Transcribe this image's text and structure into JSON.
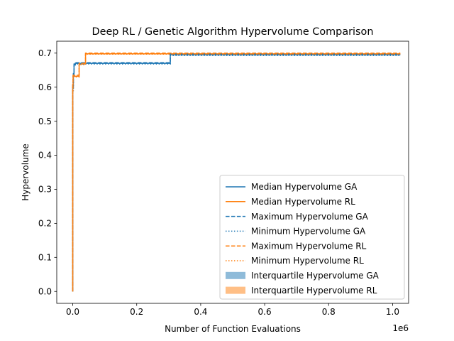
{
  "chart_data": {
    "type": "line",
    "title": "Deep RL / Genetic Algorithm Hypervolume Comparison",
    "xlabel": "Number of Function Evaluations",
    "ylabel": "Hypervolume",
    "x_offset_label": "1e6",
    "xlim": [
      -0.05,
      1.05
    ],
    "ylim": [
      -0.035,
      0.735
    ],
    "x_ticks": [
      0.0,
      0.2,
      0.4,
      0.6,
      0.8,
      1.0
    ],
    "x_tick_labels": [
      "0.0",
      "0.2",
      "0.4",
      "0.6",
      "0.8",
      "1.0"
    ],
    "y_ticks": [
      0.0,
      0.1,
      0.2,
      0.3,
      0.4,
      0.5,
      0.6,
      0.7
    ],
    "y_tick_labels": [
      "0.0",
      "0.1",
      "0.2",
      "0.3",
      "0.4",
      "0.5",
      "0.6",
      "0.7"
    ],
    "legend_position": "lower-right",
    "grid": false,
    "series": [
      {
        "name": "Median Hypervolume GA",
        "kind": "line",
        "style": "solid",
        "color": "#1f77b4",
        "x": [
          0.0,
          0.0,
          0.002,
          0.002,
          0.004,
          0.004,
          0.008,
          0.008,
          0.305,
          0.305,
          1.024
        ],
        "y": [
          0.0,
          0.6,
          0.6,
          0.64,
          0.64,
          0.665,
          0.665,
          0.67,
          0.67,
          0.695,
          0.695
        ]
      },
      {
        "name": "Median Hypervolume RL",
        "kind": "line",
        "style": "solid",
        "color": "#ff7f0e",
        "x": [
          0.0,
          0.0,
          0.001,
          0.001,
          0.02,
          0.02,
          0.04,
          0.04,
          1.024
        ],
        "y": [
          0.0,
          0.6,
          0.6,
          0.632,
          0.632,
          0.668,
          0.668,
          0.698,
          0.698
        ]
      },
      {
        "name": "Maximum Hypervolume GA",
        "kind": "line",
        "style": "dashed",
        "color": "#1f77b4",
        "x": [
          0.0,
          0.0,
          0.002,
          0.002,
          0.004,
          0.004,
          0.008,
          0.008,
          0.305,
          0.305,
          1.024
        ],
        "y": [
          0.0,
          0.61,
          0.61,
          0.645,
          0.645,
          0.668,
          0.668,
          0.672,
          0.672,
          0.697,
          0.697
        ]
      },
      {
        "name": "Minimum Hypervolume GA",
        "kind": "line",
        "style": "dotted",
        "color": "#1f77b4",
        "x": [
          0.0,
          0.0,
          0.002,
          0.002,
          0.004,
          0.004,
          0.008,
          0.008,
          0.305,
          0.305,
          1.024
        ],
        "y": [
          0.0,
          0.59,
          0.59,
          0.635,
          0.635,
          0.662,
          0.662,
          0.668,
          0.668,
          0.693,
          0.693
        ]
      },
      {
        "name": "Maximum Hypervolume RL",
        "kind": "line",
        "style": "dashed",
        "color": "#ff7f0e",
        "x": [
          0.0,
          0.0,
          0.001,
          0.001,
          0.02,
          0.02,
          0.04,
          0.04,
          1.024
        ],
        "y": [
          0.0,
          0.61,
          0.61,
          0.635,
          0.635,
          0.67,
          0.67,
          0.7,
          0.7
        ]
      },
      {
        "name": "Minimum Hypervolume RL",
        "kind": "line",
        "style": "dotted",
        "color": "#ff7f0e",
        "x": [
          0.0,
          0.0,
          0.001,
          0.001,
          0.02,
          0.02,
          0.04,
          0.04,
          1.024
        ],
        "y": [
          0.0,
          0.59,
          0.59,
          0.63,
          0.63,
          0.666,
          0.666,
          0.697,
          0.697
        ]
      },
      {
        "name": "Interquartile Hypervolume GA",
        "kind": "band",
        "color": "#1f77b4",
        "opacity": 0.5,
        "x": [
          0.0,
          0.0,
          0.002,
          0.002,
          0.004,
          0.004,
          0.008,
          0.008,
          0.305,
          0.305,
          1.024
        ],
        "y_low": [
          0.0,
          0.595,
          0.595,
          0.638,
          0.638,
          0.664,
          0.664,
          0.669,
          0.669,
          0.694,
          0.694
        ],
        "y_high": [
          0.0,
          0.605,
          0.605,
          0.642,
          0.642,
          0.666,
          0.666,
          0.671,
          0.671,
          0.696,
          0.696
        ]
      },
      {
        "name": "Interquartile Hypervolume RL",
        "kind": "band",
        "color": "#ff7f0e",
        "opacity": 0.5,
        "x": [
          0.0,
          0.0,
          0.001,
          0.001,
          0.02,
          0.02,
          0.04,
          0.04,
          1.024
        ],
        "y_low": [
          0.0,
          0.595,
          0.595,
          0.631,
          0.631,
          0.667,
          0.667,
          0.697,
          0.697
        ],
        "y_high": [
          0.0,
          0.605,
          0.605,
          0.633,
          0.633,
          0.669,
          0.669,
          0.699,
          0.699
        ]
      }
    ]
  }
}
